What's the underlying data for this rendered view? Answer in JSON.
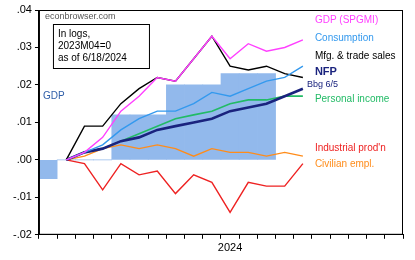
{
  "chart_data": {
    "type": "line",
    "annotations": [
      "econbrowser.com",
      "In logs,",
      "2023M04=0",
      "as of 6/18/2024",
      "Bbg 6/5"
    ],
    "categories": [
      null,
      null,
      null,
      null,
      null,
      null,
      null,
      null,
      null,
      null,
      "2024",
      null,
      null,
      null,
      null,
      null,
      null,
      null,
      null,
      null
    ],
    "ylim": [
      -0.02,
      0.04
    ],
    "yticks": [
      {
        "value": -0.02,
        "label": "-.02"
      },
      {
        "value": -0.01,
        "label": "-.01"
      },
      {
        "value": 0,
        "label": ".00"
      },
      {
        "value": 0.01,
        "label": ".01"
      },
      {
        "value": 0.02,
        "label": ".02"
      },
      {
        "value": 0.03,
        "label": ".03"
      },
      {
        "value": 0.04,
        "label": ".04"
      }
    ],
    "grid": false,
    "series": [
      {
        "name": "GDP",
        "type": "bar",
        "color": "#92b9ec",
        "values": [
          -0.005,
          0,
          0,
          0,
          0.012,
          0.012,
          0.012,
          0.02,
          0.02,
          0.02,
          0.023,
          0.023,
          0.023,
          null,
          null,
          null,
          null,
          null,
          null,
          null
        ]
      },
      {
        "name": "GDP (SPGMI)",
        "color": "#ff40ff",
        "values": [
          null,
          0,
          0.002,
          0.006,
          0.013,
          0.017,
          0.022,
          0.021,
          0.027,
          0.033,
          0.027,
          0.031,
          0.029,
          0.03,
          0.032,
          null,
          null,
          null,
          null,
          null
        ]
      },
      {
        "name": "Consumption",
        "color": "#3399ee",
        "values": [
          null,
          0,
          0.002,
          0.004,
          0.008,
          0.011,
          0.013,
          0.013,
          0.015,
          0.018,
          0.017,
          0.019,
          0.021,
          0.022,
          0.025,
          null,
          null,
          null,
          null,
          null
        ]
      },
      {
        "name": "Mfg. & trade sales",
        "color": "#000000",
        "values": [
          null,
          0,
          0.009,
          0.009,
          0.015,
          0.019,
          0.022,
          0.021,
          0.027,
          0.033,
          0.025,
          0.024,
          0.025,
          0.023,
          0.022,
          null,
          null,
          null,
          null,
          null
        ]
      },
      {
        "name": "NFP",
        "color": "#1a237e",
        "values": [
          null,
          0,
          0.002,
          0.003,
          0.005,
          0.006,
          0.008,
          0.009,
          0.01,
          0.011,
          0.013,
          0.014,
          0.015,
          0.017,
          0.019,
          null,
          null,
          null,
          null,
          null
        ]
      },
      {
        "name": "Personal income",
        "color": "#22bb66",
        "values": [
          null,
          0,
          0.002,
          0.003,
          0.005,
          0.007,
          0.009,
          0.011,
          0.012,
          0.013,
          0.015,
          0.016,
          0.016,
          0.017,
          0.017,
          null,
          null,
          null,
          null,
          null
        ]
      },
      {
        "name": "Industrial prod'n",
        "color": "#ee2222",
        "values": [
          null,
          0,
          -0.001,
          -0.008,
          -0.001,
          -0.004,
          -0.003,
          -0.009,
          -0.004,
          -0.006,
          -0.014,
          -0.006,
          -0.007,
          -0.007,
          -0.001,
          null,
          null,
          null,
          null,
          null
        ]
      },
      {
        "name": "Civilian empl.",
        "color": "#ff8c1a",
        "values": [
          null,
          0,
          0.001,
          0.003,
          0.004,
          0.003,
          0.004,
          0.003,
          0.001,
          0.003,
          0.002,
          0.002,
          0.001,
          0.002,
          0.001,
          null,
          null,
          null,
          null,
          null
        ]
      }
    ]
  }
}
